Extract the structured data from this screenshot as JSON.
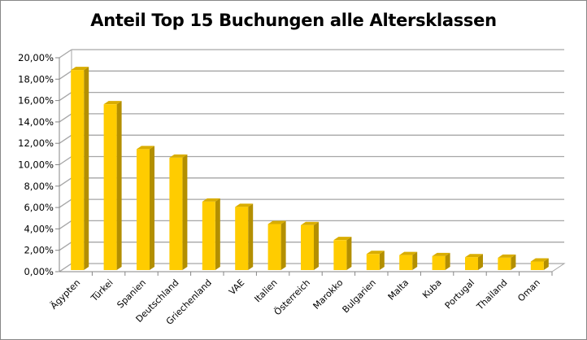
{
  "chart_data": {
    "type": "bar",
    "title": "Anteil Top 15 Buchungen alle Altersklassen",
    "xlabel": "",
    "ylabel": "",
    "categories": [
      "Ägypten",
      "Türkei",
      "Spanien",
      "Deutschland",
      "Griechenland",
      "VAE",
      "Italien",
      "Österreich",
      "Marokko",
      "Bulgarien",
      "Malta",
      "Kuba",
      "Portugal",
      "Thailand",
      "Oman"
    ],
    "values": [
      18.7,
      15.5,
      11.3,
      10.5,
      6.4,
      5.9,
      4.3,
      4.2,
      2.8,
      1.5,
      1.4,
      1.3,
      1.2,
      1.15,
      0.8
    ],
    "value_unit": "%",
    "ylim": [
      0,
      20
    ],
    "yticks": [
      "0,00%",
      "2,00%",
      "4,00%",
      "6,00%",
      "8,00%",
      "10,00%",
      "12,00%",
      "14,00%",
      "16,00%",
      "18,00%",
      "20,00%"
    ],
    "grid": true,
    "legend": null,
    "style": "3d-column",
    "colors": {
      "bar_front": "#FFCC00",
      "bar_side": "#B38F00",
      "bar_top": "#D9AD00",
      "grid": "#A6A6A6",
      "border": "#878787"
    }
  }
}
